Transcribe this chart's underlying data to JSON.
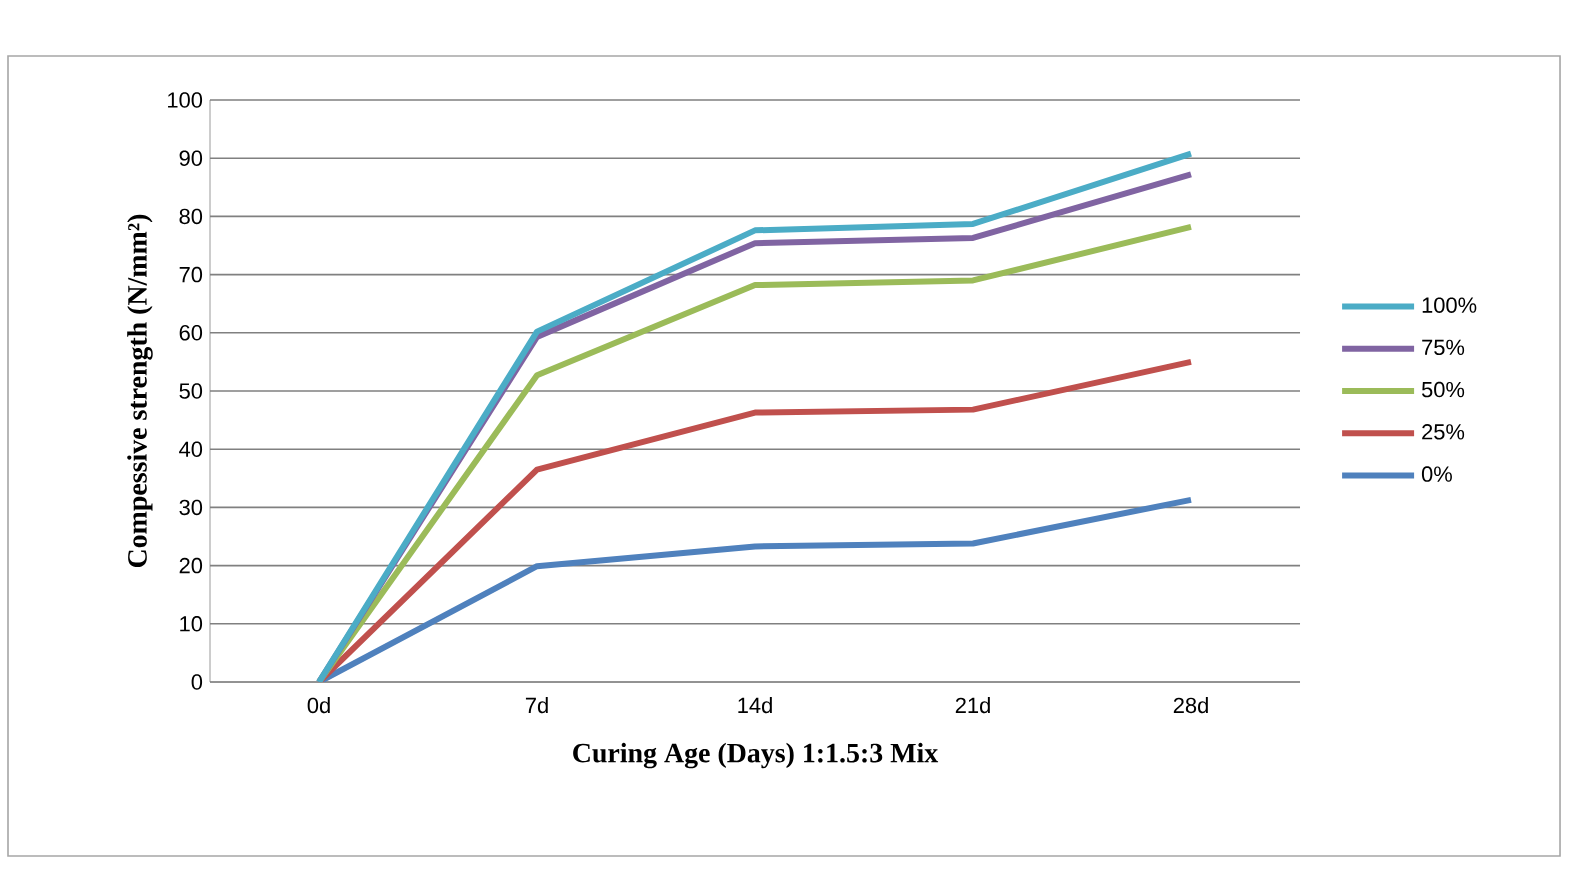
{
  "chart_data": {
    "type": "line",
    "xlabel": "Curing Age (Days) 1:1.5:3 Mix",
    "ylabel": "Compessive strength (N/mm²)",
    "categories": [
      "0d",
      "7d",
      "14d",
      "21d",
      "28d"
    ],
    "series": [
      {
        "name": "0%",
        "color": "#4f81bd",
        "values": [
          0,
          19.9,
          23.3,
          23.8,
          31.3
        ]
      },
      {
        "name": "25%",
        "color": "#c0504d",
        "values": [
          0,
          36.5,
          46.3,
          46.8,
          55.0
        ]
      },
      {
        "name": "50%",
        "color": "#9bbb59",
        "values": [
          0,
          52.7,
          68.2,
          69.0,
          78.2
        ]
      },
      {
        "name": "75%",
        "color": "#8064a2",
        "values": [
          0,
          59.3,
          75.4,
          76.3,
          87.2
        ]
      },
      {
        "name": "100%",
        "color": "#4bacc6",
        "values": [
          0,
          60.2,
          77.6,
          78.7,
          90.8
        ]
      }
    ],
    "ylim": [
      0,
      100
    ],
    "yticks": [
      0,
      10,
      20,
      30,
      40,
      50,
      60,
      70,
      80,
      90,
      100
    ],
    "grid": "y",
    "legend": "right"
  }
}
